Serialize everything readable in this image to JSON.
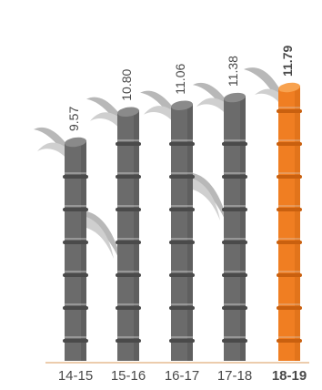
{
  "chart_data": {
    "type": "bar",
    "categories": [
      "14-15",
      "15-16",
      "16-17",
      "17-18",
      "18-19"
    ],
    "values": [
      9.57,
      10.8,
      11.06,
      11.38,
      11.79
    ],
    "value_labels": [
      "9.57",
      "10.80",
      "11.06",
      "11.38",
      "11.79"
    ],
    "highlight_index": 4,
    "ylim": [
      0,
      11.79
    ],
    "grid": false,
    "colors": {
      "stalk": "#6b6b6b",
      "stalk_dark": "#4a4a4a",
      "stalk_top": "#8a8a8a",
      "highlight": "#f07e22",
      "highlight_dark": "#c9600f",
      "highlight_top": "#f8a24f",
      "leaf": "#b8b8b8",
      "node": "#d9d9d9",
      "baseline": "#d89a5a"
    }
  }
}
